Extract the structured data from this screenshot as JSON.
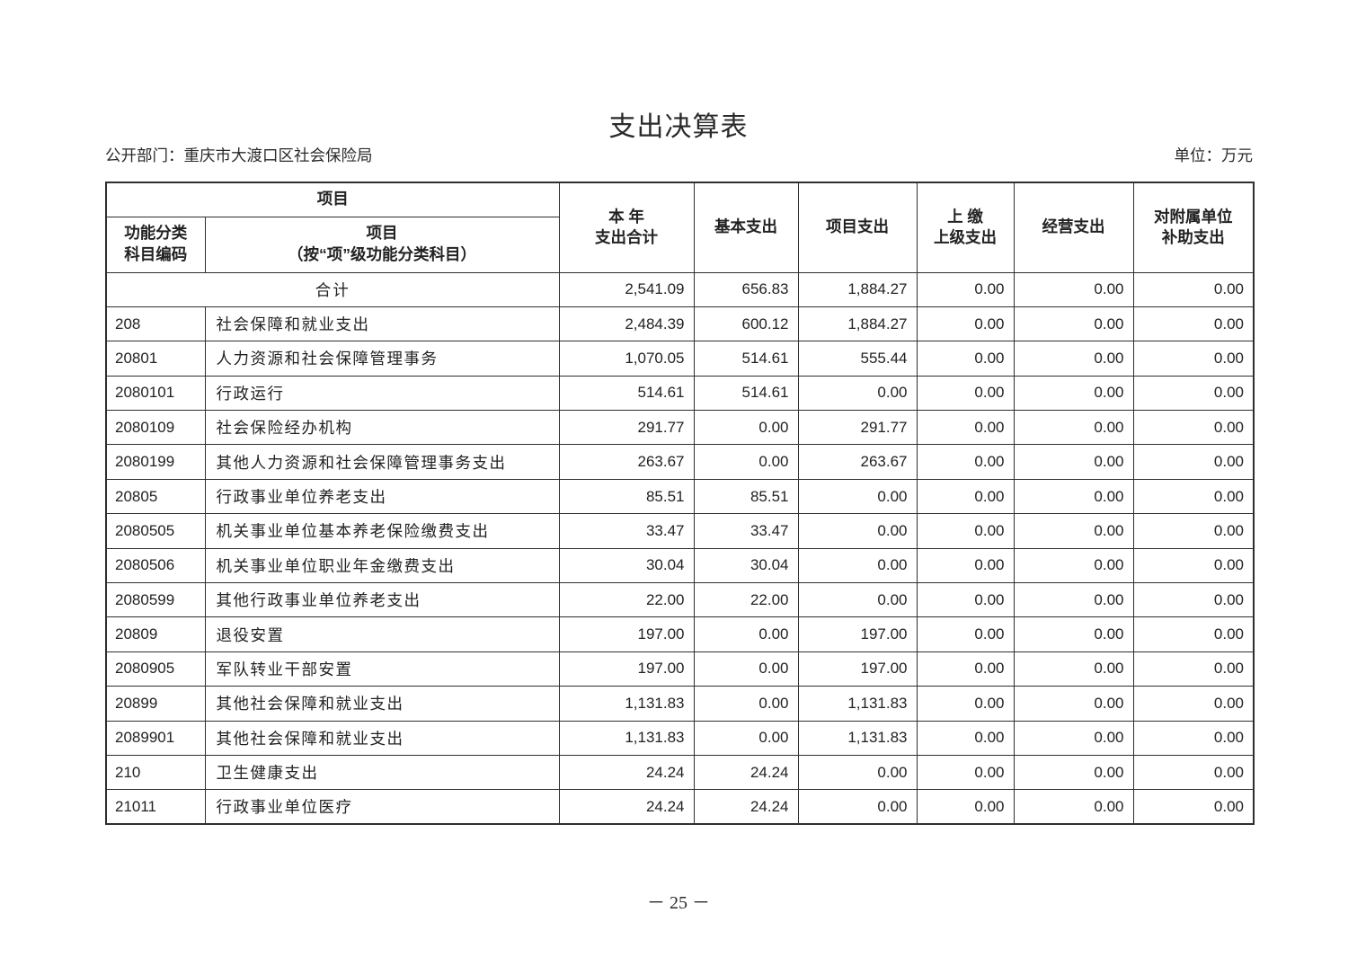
{
  "page": {
    "title": "支出决算表",
    "department_label": "公开部门：重庆市大渡口区社会保险局",
    "unit_label": "单位：万元",
    "page_number": "－ 25 －"
  },
  "table": {
    "header": {
      "group_label": "项目",
      "col_code_line1": "功能分类",
      "col_code_line2": "科目编码",
      "col_name_line1": "项目",
      "col_name_line2": "（按“项”级功能分类科目）",
      "col_total_line1": "本 年",
      "col_total_line2": "支出合计",
      "col_basic": "基本支出",
      "col_project": "项目支出",
      "col_upper_line1": "上 缴",
      "col_upper_line2": "上级支出",
      "col_operating": "经营支出",
      "col_subsidy_line1": "对附属单位",
      "col_subsidy_line2": "补助支出"
    },
    "value_keys": [
      "total",
      "basic",
      "project",
      "upper",
      "operating",
      "subsidy"
    ],
    "rows": [
      {
        "merged": true,
        "code": "",
        "name": "合计",
        "total": "2,541.09",
        "basic": "656.83",
        "project": "1,884.27",
        "upper": "0.00",
        "operating": "0.00",
        "subsidy": "0.00"
      },
      {
        "merged": false,
        "code": "208",
        "name": "社会保障和就业支出",
        "total": "2,484.39",
        "basic": "600.12",
        "project": "1,884.27",
        "upper": "0.00",
        "operating": "0.00",
        "subsidy": "0.00"
      },
      {
        "merged": false,
        "code": "20801",
        "name": "人力资源和社会保障管理事务",
        "total": "1,070.05",
        "basic": "514.61",
        "project": "555.44",
        "upper": "0.00",
        "operating": "0.00",
        "subsidy": "0.00"
      },
      {
        "merged": false,
        "code": "2080101",
        "name": "行政运行",
        "total": "514.61",
        "basic": "514.61",
        "project": "0.00",
        "upper": "0.00",
        "operating": "0.00",
        "subsidy": "0.00"
      },
      {
        "merged": false,
        "code": "2080109",
        "name": "社会保险经办机构",
        "total": "291.77",
        "basic": "0.00",
        "project": "291.77",
        "upper": "0.00",
        "operating": "0.00",
        "subsidy": "0.00"
      },
      {
        "merged": false,
        "code": "2080199",
        "name": "其他人力资源和社会保障管理事务支出",
        "total": "263.67",
        "basic": "0.00",
        "project": "263.67",
        "upper": "0.00",
        "operating": "0.00",
        "subsidy": "0.00"
      },
      {
        "merged": false,
        "code": "20805",
        "name": "行政事业单位养老支出",
        "total": "85.51",
        "basic": "85.51",
        "project": "0.00",
        "upper": "0.00",
        "operating": "0.00",
        "subsidy": "0.00"
      },
      {
        "merged": false,
        "code": "2080505",
        "name": "机关事业单位基本养老保险缴费支出",
        "total": "33.47",
        "basic": "33.47",
        "project": "0.00",
        "upper": "0.00",
        "operating": "0.00",
        "subsidy": "0.00"
      },
      {
        "merged": false,
        "code": "2080506",
        "name": "机关事业单位职业年金缴费支出",
        "total": "30.04",
        "basic": "30.04",
        "project": "0.00",
        "upper": "0.00",
        "operating": "0.00",
        "subsidy": "0.00"
      },
      {
        "merged": false,
        "code": "2080599",
        "name": "其他行政事业单位养老支出",
        "total": "22.00",
        "basic": "22.00",
        "project": "0.00",
        "upper": "0.00",
        "operating": "0.00",
        "subsidy": "0.00"
      },
      {
        "merged": false,
        "code": "20809",
        "name": "退役安置",
        "total": "197.00",
        "basic": "0.00",
        "project": "197.00",
        "upper": "0.00",
        "operating": "0.00",
        "subsidy": "0.00"
      },
      {
        "merged": false,
        "code": "2080905",
        "name": "军队转业干部安置",
        "total": "197.00",
        "basic": "0.00",
        "project": "197.00",
        "upper": "0.00",
        "operating": "0.00",
        "subsidy": "0.00"
      },
      {
        "merged": false,
        "code": "20899",
        "name": "其他社会保障和就业支出",
        "total": "1,131.83",
        "basic": "0.00",
        "project": "1,131.83",
        "upper": "0.00",
        "operating": "0.00",
        "subsidy": "0.00"
      },
      {
        "merged": false,
        "code": "2089901",
        "name": "其他社会保障和就业支出",
        "total": "1,131.83",
        "basic": "0.00",
        "project": "1,131.83",
        "upper": "0.00",
        "operating": "0.00",
        "subsidy": "0.00"
      },
      {
        "merged": false,
        "code": "210",
        "name": "卫生健康支出",
        "total": "24.24",
        "basic": "24.24",
        "project": "0.00",
        "upper": "0.00",
        "operating": "0.00",
        "subsidy": "0.00"
      },
      {
        "merged": false,
        "code": "21011",
        "name": "行政事业单位医疗",
        "total": "24.24",
        "basic": "24.24",
        "project": "0.00",
        "upper": "0.00",
        "operating": "0.00",
        "subsidy": "0.00"
      }
    ]
  }
}
